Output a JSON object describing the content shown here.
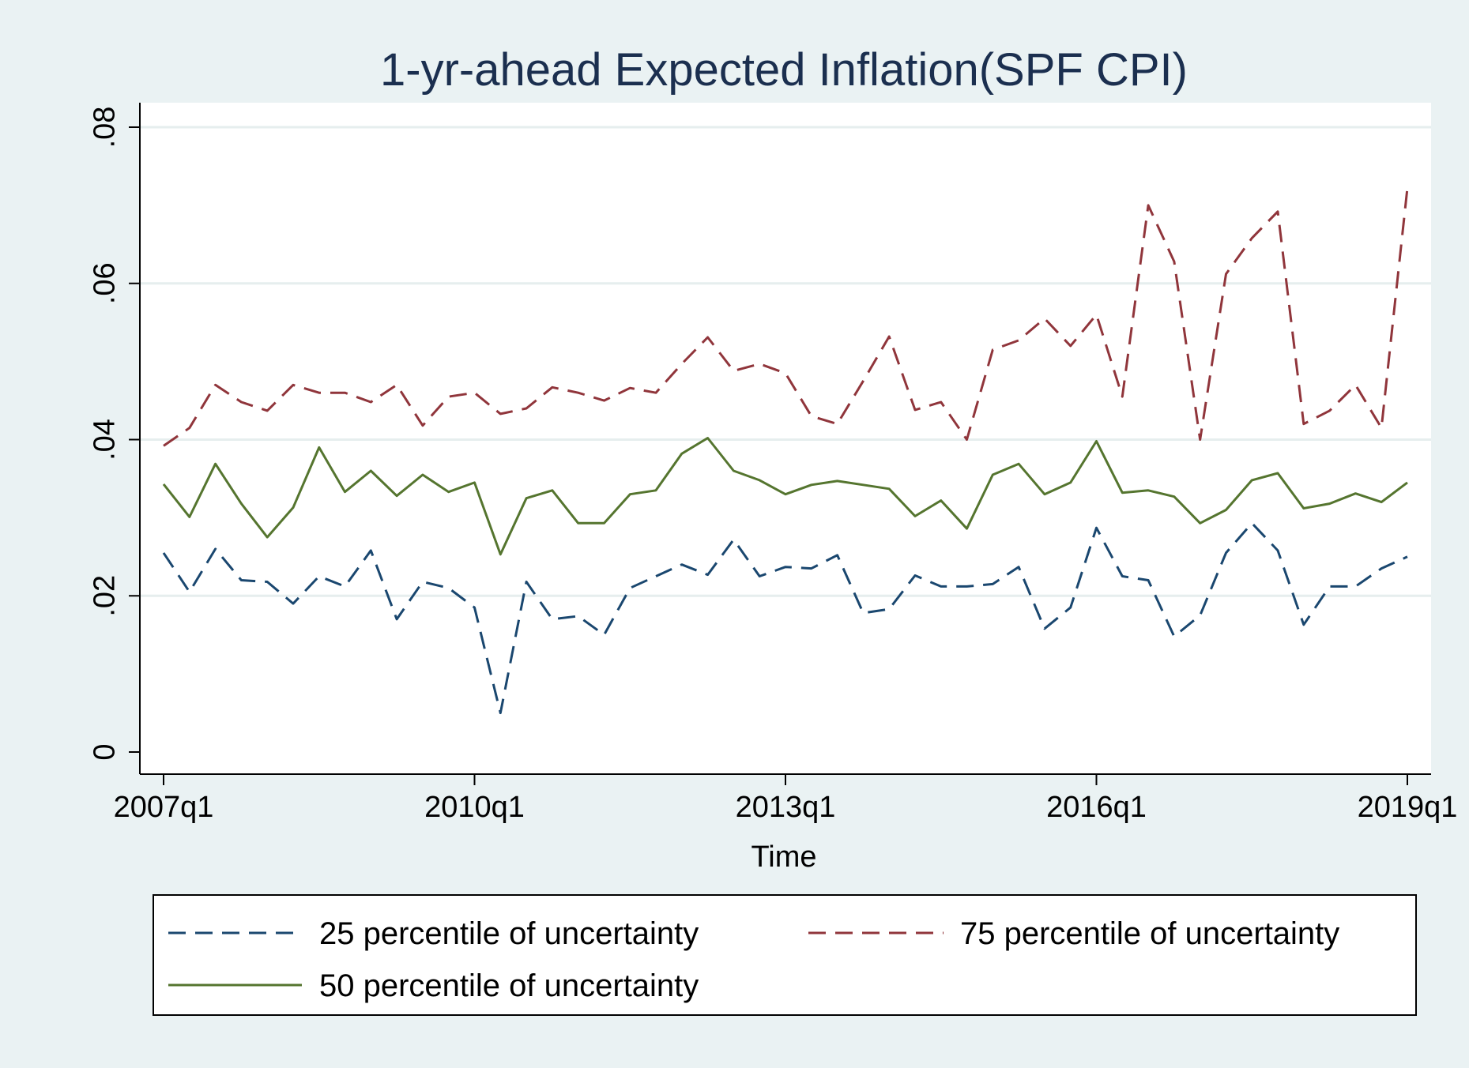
{
  "chart_data": {
    "type": "line",
    "title": "1-yr-ahead Expected Inflation(SPF CPI)",
    "xlabel": "Time",
    "ylabel": "",
    "ylim": [
      0,
      0.08
    ],
    "yticks": [
      0,
      0.02,
      0.04,
      0.06,
      0.08
    ],
    "ytick_labels": [
      "0",
      ".02",
      ".04",
      ".06",
      ".08"
    ],
    "xticks": [
      "2007q1",
      "2010q1",
      "2013q1",
      "2016q1",
      "2019q1"
    ],
    "xtick_index": [
      0,
      12,
      24,
      36,
      48
    ],
    "x": [
      "2007q1",
      "2007q2",
      "2007q3",
      "2007q4",
      "2008q1",
      "2008q2",
      "2008q3",
      "2008q4",
      "2009q1",
      "2009q2",
      "2009q3",
      "2009q4",
      "2010q1",
      "2010q2",
      "2010q3",
      "2010q4",
      "2011q1",
      "2011q2",
      "2011q3",
      "2011q4",
      "2012q1",
      "2012q2",
      "2012q3",
      "2012q4",
      "2013q1",
      "2013q2",
      "2013q3",
      "2013q4",
      "2014q1",
      "2014q2",
      "2014q3",
      "2014q4",
      "2015q1",
      "2015q2",
      "2015q3",
      "2015q4",
      "2016q1",
      "2016q2",
      "2016q3",
      "2016q4",
      "2017q1",
      "2017q2",
      "2017q3",
      "2017q4",
      "2018q1",
      "2018q2",
      "2018q3",
      "2018q4",
      "2019q1"
    ],
    "grid": true,
    "legend_position": "bottom",
    "series": [
      {
        "name": "25 percentile of uncertainty",
        "color": "#1a476f",
        "dash": "dashed",
        "values": [
          0.0255,
          0.0205,
          0.026,
          0.022,
          0.0218,
          0.019,
          0.0225,
          0.0212,
          0.0258,
          0.017,
          0.0218,
          0.021,
          0.0185,
          0.005,
          0.0218,
          0.017,
          0.0174,
          0.015,
          0.021,
          0.0225,
          0.024,
          0.0227,
          0.0272,
          0.0225,
          0.0237,
          0.0235,
          0.0252,
          0.0178,
          0.0183,
          0.0226,
          0.0212,
          0.0212,
          0.0215,
          0.0237,
          0.0158,
          0.0185,
          0.0287,
          0.0225,
          0.022,
          0.0148,
          0.0175,
          0.0255,
          0.0293,
          0.0258,
          0.0163,
          0.0212,
          0.0212,
          0.0235,
          0.025
        ]
      },
      {
        "name": "75 percentile of uncertainty",
        "color": "#90353b",
        "dash": "dashed",
        "values": [
          0.0392,
          0.0415,
          0.047,
          0.0448,
          0.0437,
          0.047,
          0.046,
          0.046,
          0.0448,
          0.047,
          0.0418,
          0.0455,
          0.046,
          0.0433,
          0.044,
          0.0467,
          0.046,
          0.045,
          0.0466,
          0.046,
          0.0497,
          0.0531,
          0.0488,
          0.0497,
          0.0485,
          0.043,
          0.042,
          0.0475,
          0.0532,
          0.0438,
          0.0448,
          0.04,
          0.0515,
          0.0527,
          0.0555,
          0.052,
          0.056,
          0.0455,
          0.07,
          0.0628,
          0.04,
          0.0612,
          0.0658,
          0.0692,
          0.042,
          0.0437,
          0.047,
          0.0415,
          0.0722
        ]
      },
      {
        "name": "50 percentile of uncertainty",
        "color": "#55752f",
        "dash": "solid",
        "values": [
          0.0343,
          0.0301,
          0.0369,
          0.0318,
          0.0275,
          0.0313,
          0.039,
          0.0333,
          0.036,
          0.0328,
          0.0355,
          0.0333,
          0.0345,
          0.0253,
          0.0325,
          0.0335,
          0.0293,
          0.0293,
          0.033,
          0.0335,
          0.0382,
          0.0402,
          0.036,
          0.0348,
          0.033,
          0.0342,
          0.0347,
          0.0342,
          0.0337,
          0.0302,
          0.0322,
          0.0286,
          0.0355,
          0.0369,
          0.033,
          0.0345,
          0.0398,
          0.0332,
          0.0335,
          0.0327,
          0.0293,
          0.031,
          0.0348,
          0.0357,
          0.0312,
          0.0318,
          0.0331,
          0.032,
          0.0345
        ]
      }
    ],
    "legend_order": [
      0,
      1,
      2
    ]
  }
}
